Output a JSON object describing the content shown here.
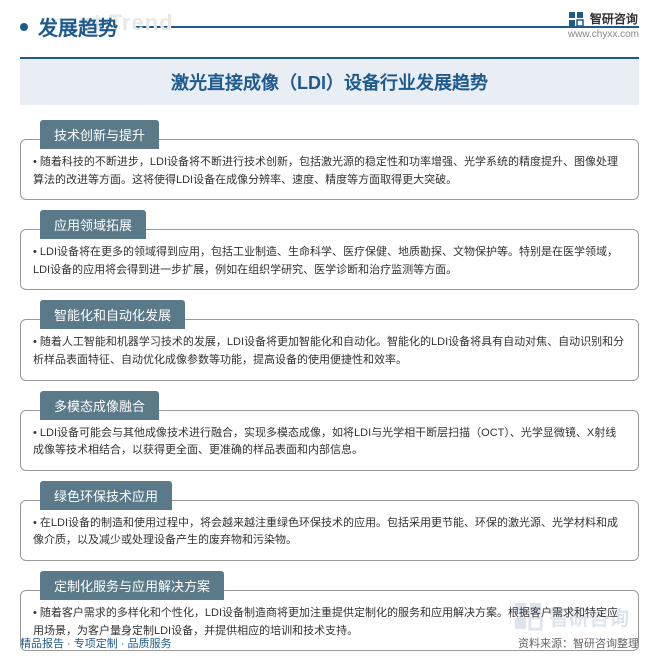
{
  "header": {
    "title": "发展趋势",
    "ghost_text": "ment Trend",
    "brand_name": "智研咨询",
    "brand_url": "www.chyxx.com"
  },
  "main_title": "激光直接成像（LDI）设备行业发展趋势",
  "sections": [
    {
      "tab": "技术创新与提升",
      "text": "随着科技的不断进步，LDI设备将不断进行技术创新，包括激光源的稳定性和功率增强、光学系统的精度提升、图像处理算法的改进等方面。这将使得LDI设备在成像分辨率、速度、精度等方面取得更大突破。"
    },
    {
      "tab": "应用领域拓展",
      "text": "LDI设备将在更多的领域得到应用，包括工业制造、生命科学、医疗保健、地质勘探、文物保护等。特别是在医学领域，LDI设备的应用将会得到进一步扩展，例如在组织学研究、医学诊断和治疗监测等方面。"
    },
    {
      "tab": "智能化和自动化发展",
      "text": "随着人工智能和机器学习技术的发展，LDI设备将更加智能化和自动化。智能化的LDI设备将具有自动对焦、自动识别和分析样品表面特征、自动优化成像参数等功能，提高设备的使用便捷性和效率。"
    },
    {
      "tab": "多模态成像融合",
      "text": "LDI设备可能会与其他成像技术进行融合，实现多模态成像，如将LDI与光学相干断层扫描（OCT）、光学显微镜、X射线成像等技术相结合，以获得更全面、更准确的样品表面和内部信息。"
    },
    {
      "tab": "绿色环保技术应用",
      "text": "在LDI设备的制造和使用过程中，将会越来越注重绿色环保技术的应用。包括采用更节能、环保的激光源、光学材料和成像介质，以及减少或处理设备产生的废弃物和污染物。"
    },
    {
      "tab": "定制化服务与应用解决方案",
      "text": "随着客户需求的多样化和个性化，LDI设备制造商将更加注重提供定制化的服务和应用解决方案。根据客户需求和特定应用场景，为客户量身定制LDI设备，并提供相应的培训和技术支持。"
    }
  ],
  "footer": {
    "left": "精品报告 · 专项定制 · 品质服务",
    "right": "资料来源：智研咨询整理"
  },
  "watermark": "智研咨询",
  "colors": {
    "primary": "#1e5a8e",
    "tab_bg": "#5a7a8a",
    "title_bg": "#e8eef3"
  }
}
